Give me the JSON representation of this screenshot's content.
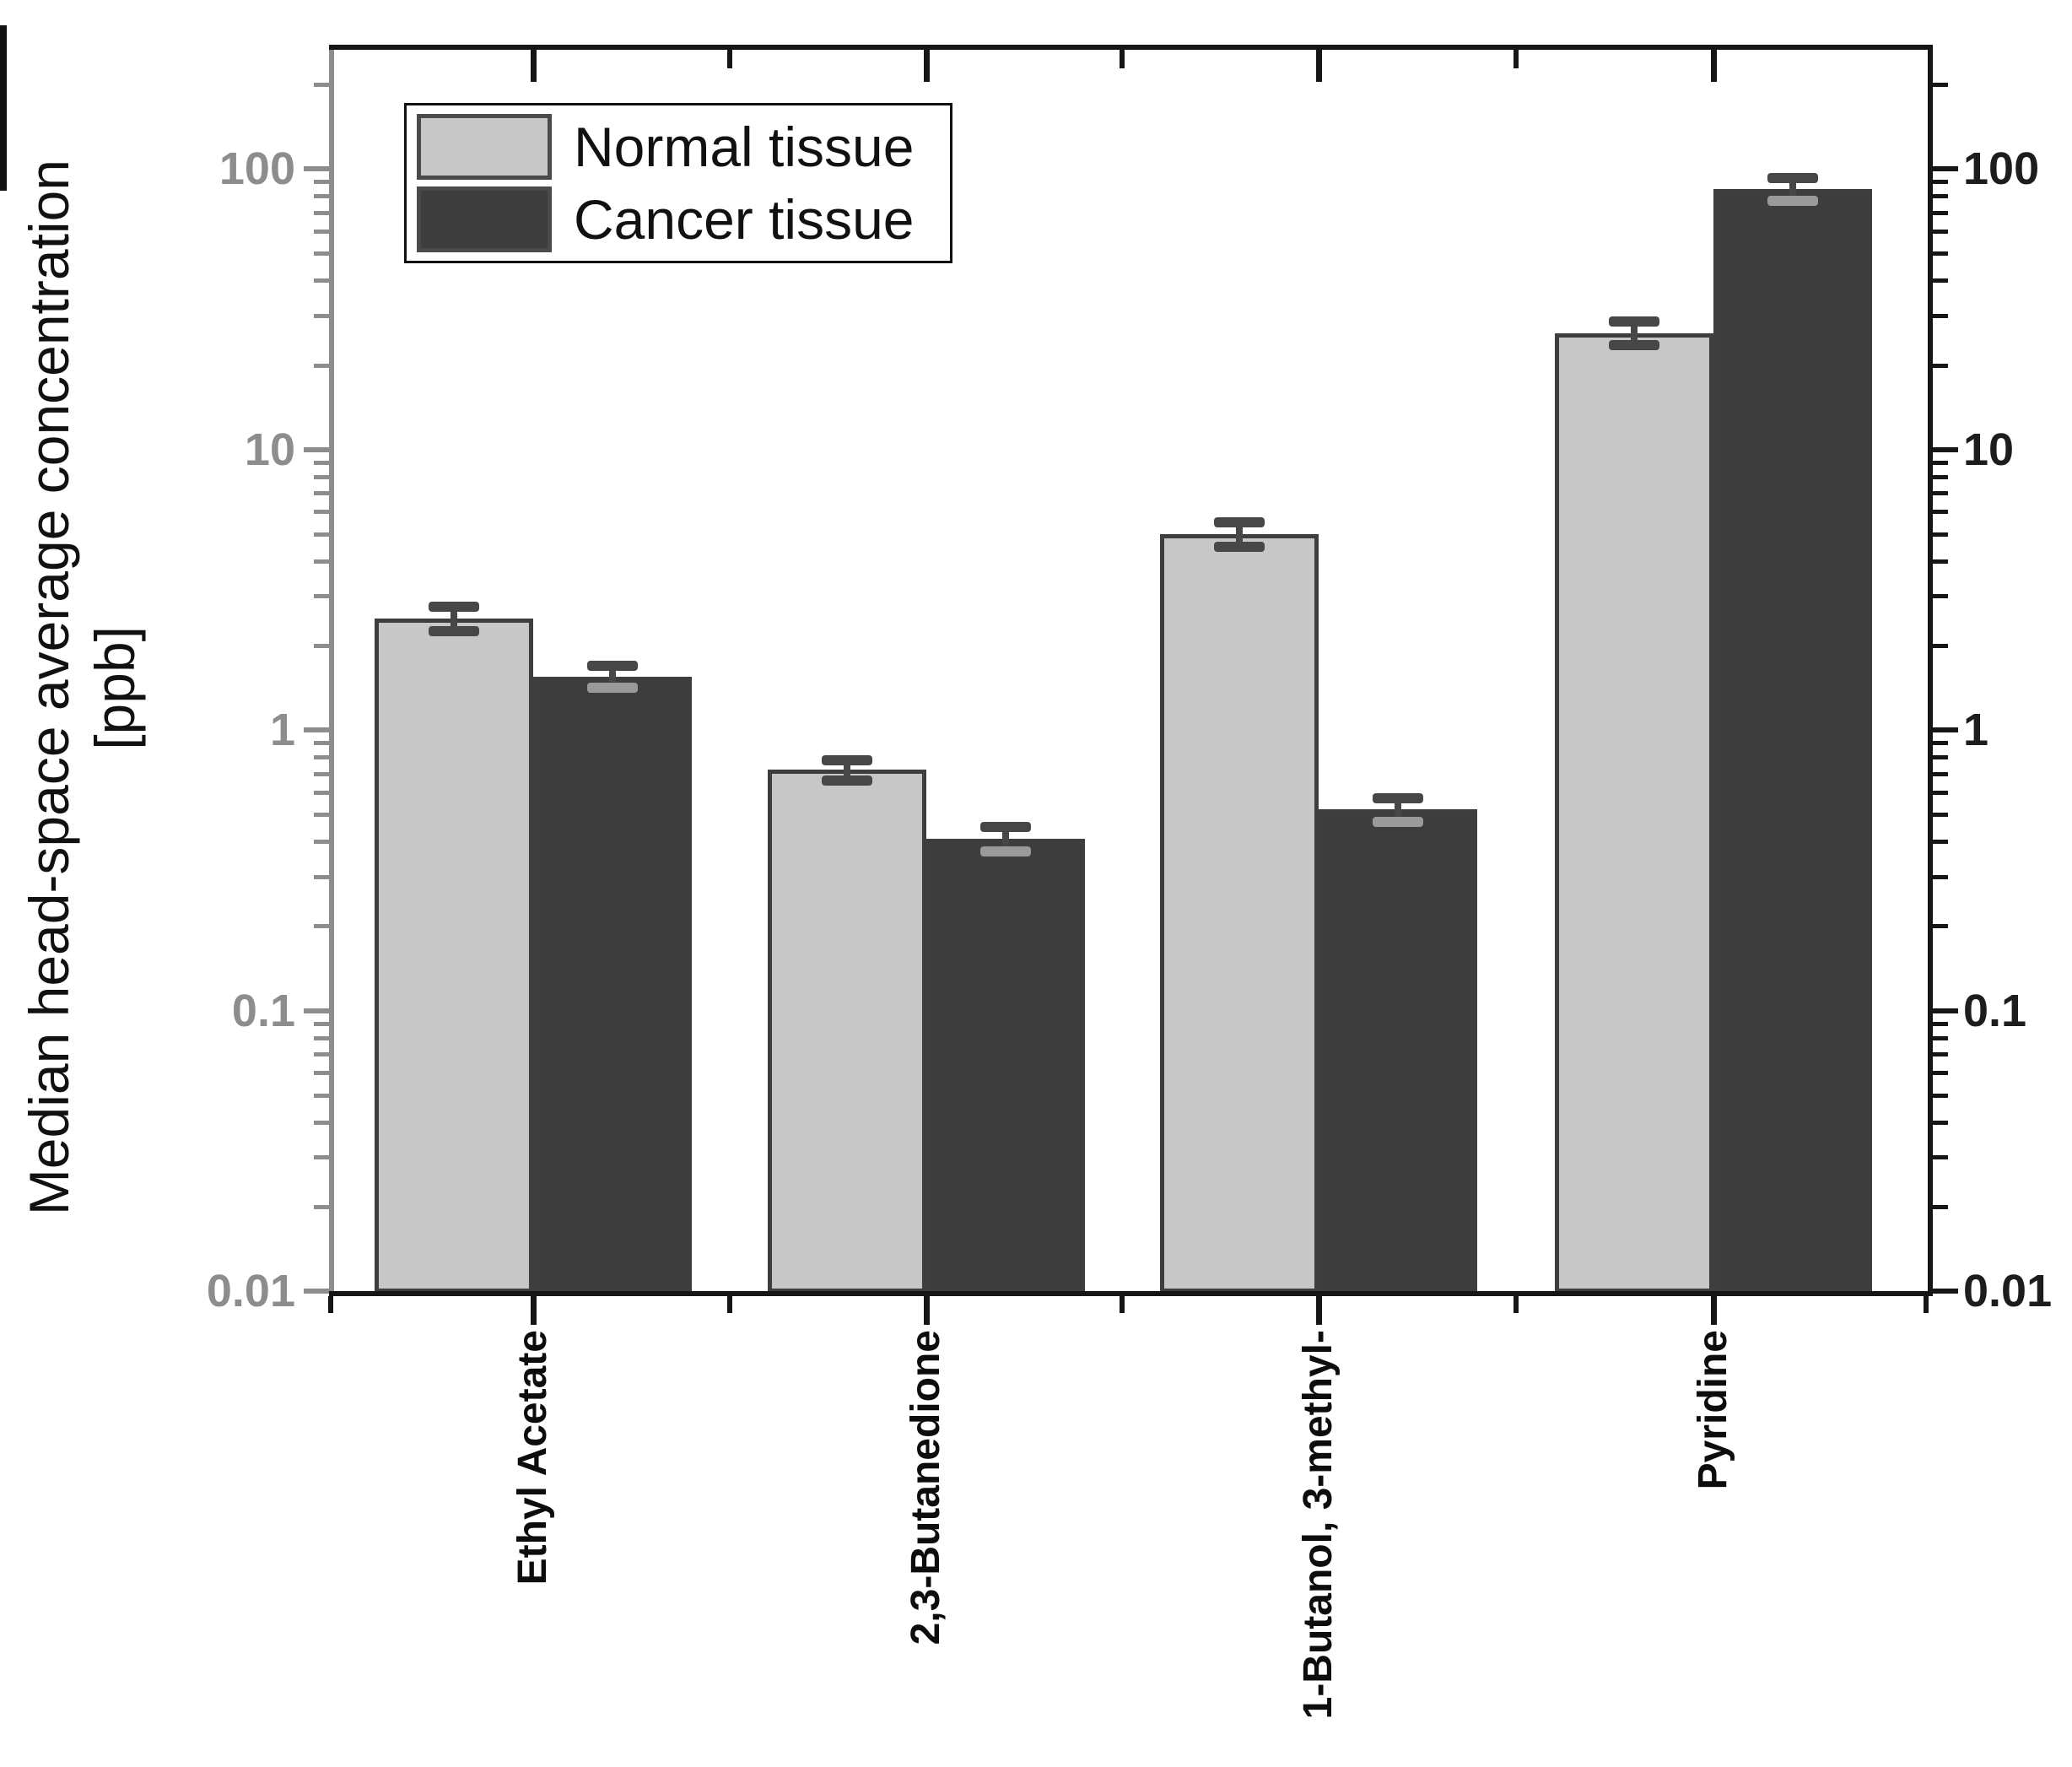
{
  "y_axis": {
    "label_line1": "Median head-space average concentration",
    "label_line2": "[ppb]",
    "tick_labels": [
      "100",
      "10",
      "1",
      "0.1",
      "0.01"
    ],
    "tick_values": [
      100,
      10,
      1,
      0.1,
      0.01
    ],
    "left_color": "#8d8d8d",
    "right_color": "#1d1d1d"
  },
  "colors": {
    "frame": "#161616",
    "left_axis": "#8d8d8d",
    "bar_outline": "#3e3e3e",
    "error_bar": "#474747",
    "error_bar_on_dark": "#9a9a9a",
    "background": "#ffffff"
  },
  "chart_data": {
    "type": "bar",
    "y_scale": "log",
    "title": "",
    "ylabel": "Median head-space average concentration [ppb]",
    "xlabel": "",
    "ylim": [
      0.01,
      277
    ],
    "yticks": [
      100,
      10,
      1,
      0.1,
      0.01
    ],
    "grid": false,
    "legend_position": "top-left",
    "categories": [
      "Ethyl Acetate",
      "2,3-Butanedione",
      "1-Butanol, 3-methyl-",
      "Pyridine"
    ],
    "series": [
      {
        "name": "Normal tissue",
        "color": "#c7c7c7",
        "values": [
          2.5,
          0.72,
          5.0,
          26
        ],
        "errors": [
          0.25,
          0.06,
          0.5,
          2.5
        ]
      },
      {
        "name": "Cancer tissue",
        "color": "#3d3d3d",
        "values": [
          1.55,
          0.41,
          0.52,
          85
        ],
        "errors": [
          0.14,
          0.04,
          0.05,
          8
        ]
      }
    ]
  }
}
